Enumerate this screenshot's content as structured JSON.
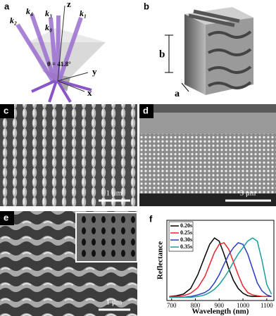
{
  "panels": {
    "a": {
      "label": "a",
      "beams": [
        "k₂",
        "k₄",
        "k₀",
        "k₃",
        "k₁"
      ],
      "axes": [
        "z",
        "y",
        "x"
      ],
      "angle": "θ = 41.8°"
    },
    "b": {
      "label": "b",
      "dims": [
        "b",
        "a"
      ]
    },
    "c": {
      "label": "c",
      "scale_bar": "1 μm"
    },
    "d": {
      "label": "d",
      "scale_bar": "5 μm"
    },
    "e": {
      "label": "e",
      "scale_bar": "1 μm"
    },
    "f": {
      "label": "f"
    }
  },
  "chart_data": {
    "type": "line",
    "x_label": "Wavelength (nm)",
    "y_label": "Reflectance",
    "x": [
      690,
      720,
      750,
      780,
      810,
      840,
      860,
      880,
      900,
      920,
      940,
      960,
      980,
      1000,
      1020,
      1040,
      1060,
      1080,
      1100,
      1120
    ],
    "xlim": [
      680,
      1130
    ],
    "xticks": [
      700,
      800,
      900,
      1000,
      1100
    ],
    "ylim": [
      0,
      1
    ],
    "series": [
      {
        "name": "0.20s",
        "color": "#000000",
        "values": [
          0.05,
          0.06,
          0.08,
          0.15,
          0.32,
          0.55,
          0.7,
          0.78,
          0.74,
          0.58,
          0.4,
          0.25,
          0.15,
          0.09,
          0.06,
          0.05,
          0.05,
          0.05,
          0.05,
          0.05
        ]
      },
      {
        "name": "0.25s",
        "color": "#e8262a",
        "values": [
          0.05,
          0.05,
          0.06,
          0.09,
          0.16,
          0.3,
          0.45,
          0.6,
          0.7,
          0.72,
          0.64,
          0.48,
          0.32,
          0.18,
          0.1,
          0.07,
          0.06,
          0.05,
          0.05,
          0.05
        ]
      },
      {
        "name": "0.30s",
        "color": "#2a3bc8",
        "values": [
          0.04,
          0.04,
          0.04,
          0.05,
          0.07,
          0.1,
          0.14,
          0.22,
          0.32,
          0.45,
          0.57,
          0.66,
          0.72,
          0.7,
          0.58,
          0.4,
          0.22,
          0.12,
          0.07,
          0.05
        ]
      },
      {
        "name": "0.35s",
        "color": "#1a9c9c",
        "values": [
          0.04,
          0.04,
          0.04,
          0.04,
          0.05,
          0.07,
          0.1,
          0.14,
          0.2,
          0.28,
          0.37,
          0.48,
          0.58,
          0.66,
          0.74,
          0.78,
          0.74,
          0.5,
          0.2,
          0.08
        ]
      }
    ]
  }
}
